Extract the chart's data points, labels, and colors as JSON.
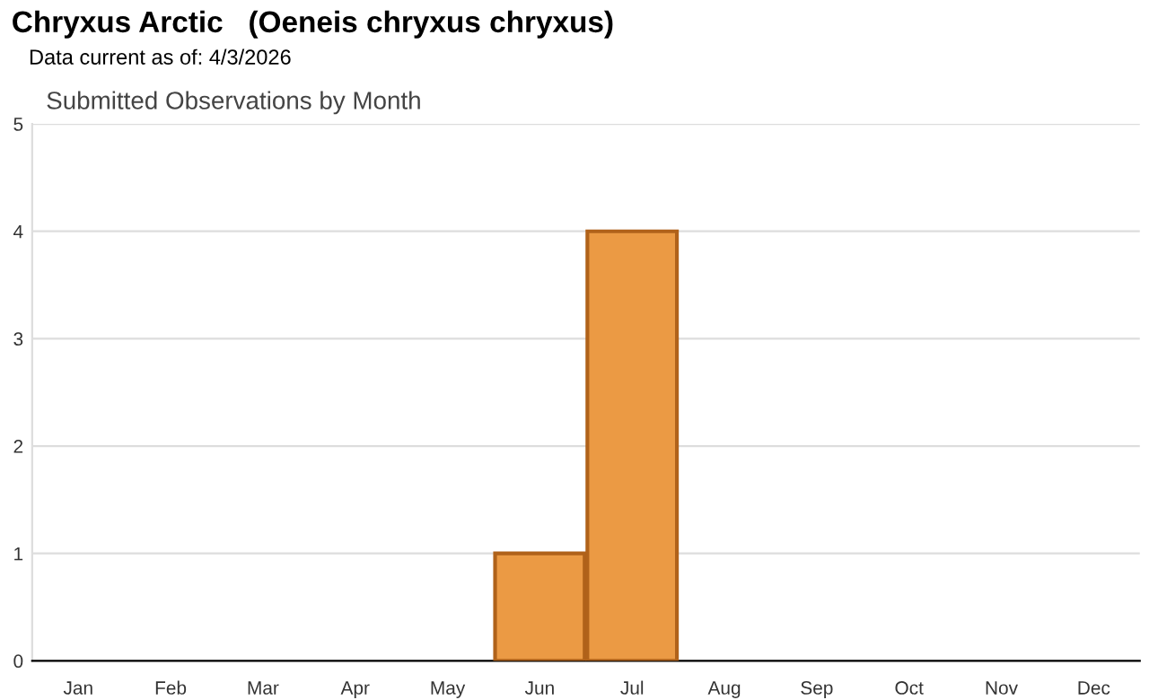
{
  "chart_data": {
    "type": "bar",
    "title": "Chryxus Arctic   (Oeneis chryxus chryxus)",
    "subtitle": "Data current as of: 4/3/2026",
    "annotations": [
      "Submitted Observations by Month"
    ],
    "categories": [
      "Jan",
      "Feb",
      "Mar",
      "Apr",
      "May",
      "Jun",
      "Jul",
      "Aug",
      "Sep",
      "Oct",
      "Nov",
      "Dec"
    ],
    "values": [
      0,
      0,
      0,
      0,
      0,
      1,
      4,
      0,
      0,
      0,
      0,
      0
    ],
    "color": "#eb9a44",
    "ylim": [
      0,
      5
    ],
    "yticks": [
      0,
      1,
      2,
      3,
      4,
      5
    ],
    "grid": "y",
    "legend": false
  }
}
